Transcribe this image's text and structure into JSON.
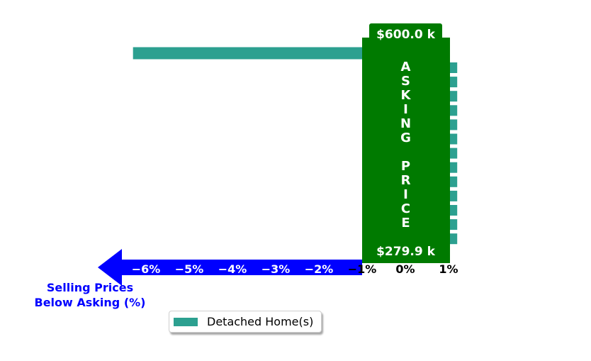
{
  "colors": {
    "bar": "#2ca090",
    "asking_box": "#007a00",
    "arrow": "#0000ff",
    "tick_on_arrow": "#ffffff",
    "tick_default": "#000000",
    "axis_title": "#0000ff"
  },
  "chart_data": {
    "type": "bar",
    "orientation": "horizontal",
    "series": [
      {
        "name": "Detached Home(s)",
        "values": [
          -6.3,
          1.2,
          1.2,
          1.2,
          1.2,
          1.2,
          1.2,
          1.2,
          1.2,
          1.2,
          1.2,
          1.2,
          1.2,
          1.2
        ]
      }
    ],
    "xlim": [
      -6.6,
      1.15
    ],
    "x_ticks": [
      -6,
      -5,
      -4,
      -3,
      -2,
      -1,
      0,
      1
    ],
    "x_tick_labels": [
      "−6%",
      "−5%",
      "−4%",
      "−3%",
      "−2%",
      "−1%",
      "0%",
      "1%"
    ],
    "xlabel": "Selling Prices\nBelow Asking (%)",
    "asking_box": {
      "top_label": "$600.0 k",
      "bottom_label": "$279.9 k",
      "vertical_text": "ASKING PRICE"
    },
    "legend": {
      "entries": [
        "Detached Home(s)"
      ],
      "position": "lower-center"
    }
  }
}
